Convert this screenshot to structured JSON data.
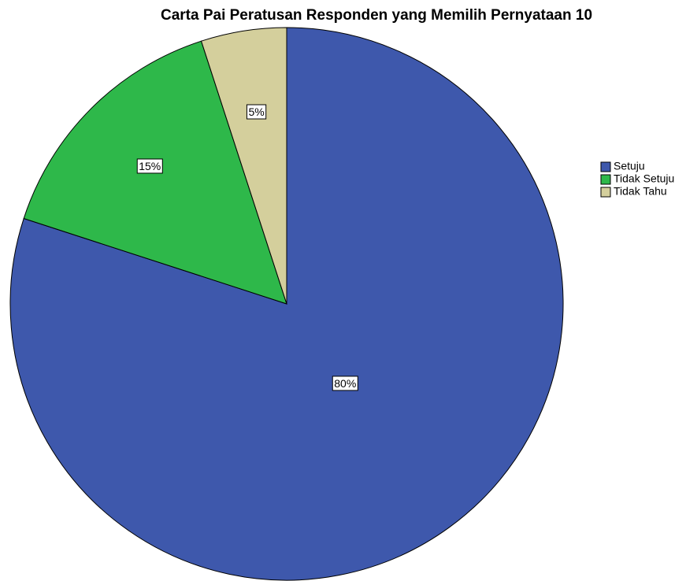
{
  "chart_data": {
    "type": "pie",
    "title": "Carta Pai Peratusan Responden yang Memilih Pernyataan 10",
    "categories": [
      "Setuju",
      "Tidak Setuju",
      "Tidak Tahu"
    ],
    "values": [
      80,
      15,
      5
    ],
    "value_labels": [
      "80%",
      "15%",
      "5%"
    ],
    "colors": [
      "#3e58ac",
      "#2eb84a",
      "#d4cf9c"
    ],
    "legend": "right"
  }
}
